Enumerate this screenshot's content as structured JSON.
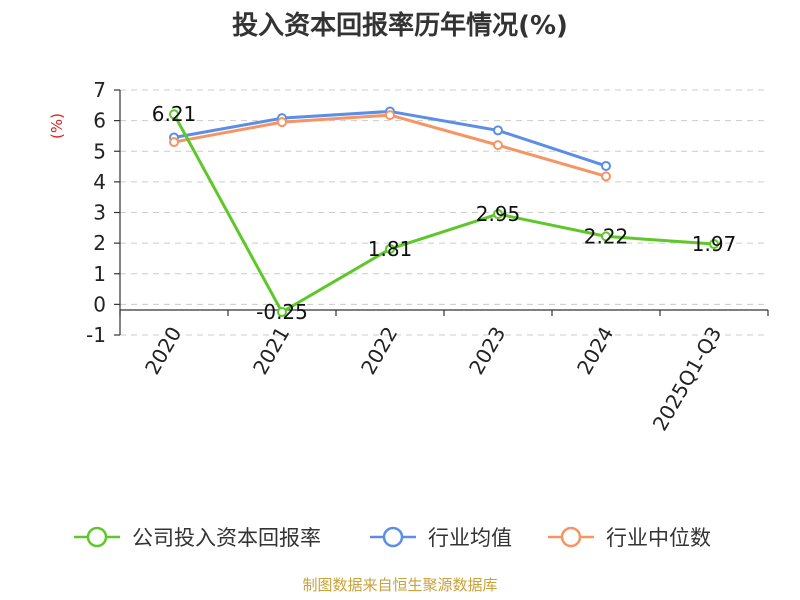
{
  "chart_data": {
    "type": "line",
    "title": "投入资本回报率历年情况(%)",
    "ylabel": "(%)",
    "categories": [
      "2020",
      "2021",
      "2022",
      "2023",
      "2024",
      "2025Q1-Q3"
    ],
    "ylim": [
      -1,
      7
    ],
    "yticks": [
      "7",
      "6",
      "5",
      "4",
      "3",
      "2",
      "1",
      "0",
      "-1"
    ],
    "grid": true,
    "legend_position": "bottom",
    "series": [
      {
        "name": "公司投入资本回报率",
        "values": [
          6.21,
          -0.25,
          1.81,
          2.95,
          2.22,
          1.97
        ],
        "labels": [
          "6.21",
          "-0.25",
          "1.81",
          "2.95",
          "2.22",
          "1.97"
        ],
        "color": "#5ec729"
      },
      {
        "name": "行业均值",
        "values": [
          5.45,
          6.08,
          6.3,
          5.68,
          4.52,
          null
        ],
        "color": "#5b8ee6"
      },
      {
        "name": "行业中位数",
        "values": [
          5.3,
          5.95,
          6.18,
          5.2,
          4.18,
          null
        ],
        "color": "#f79463"
      }
    ]
  },
  "colors": {
    "ylabel": "#e02020",
    "source": "#c9a23a",
    "axis": "#333333",
    "grid": "#cccccc"
  },
  "source_text": "制图数据来自恒生聚源数据库"
}
